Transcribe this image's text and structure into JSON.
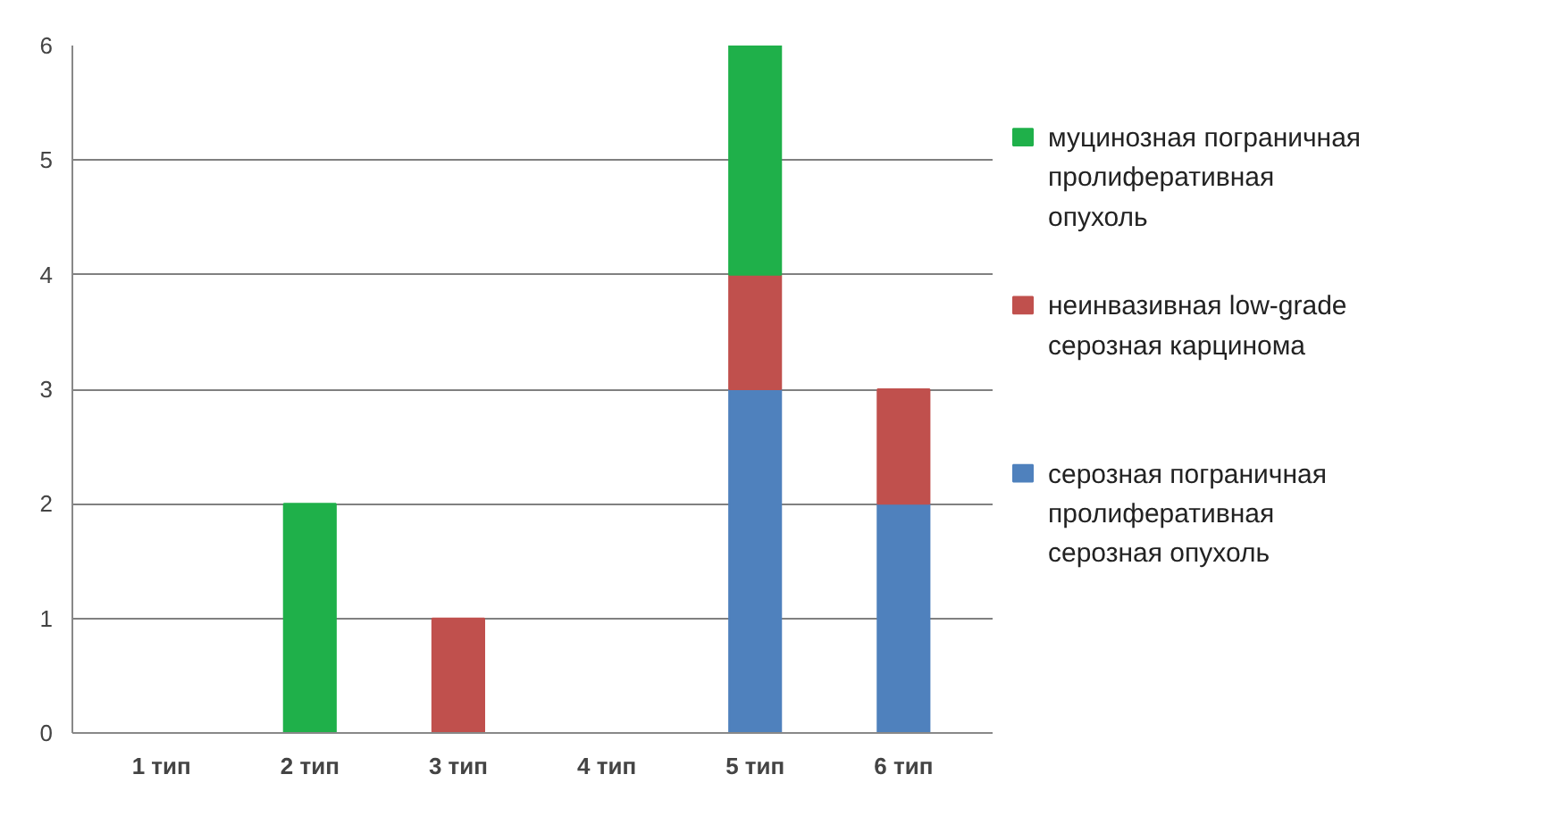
{
  "chart_data": {
    "type": "bar",
    "stacked": true,
    "categories": [
      "1 тип",
      "2 тип",
      "3 тип",
      "4 тип",
      "5 тип",
      "6 тип"
    ],
    "series": [
      {
        "name": "серозная пограничная пролиферативная серозная опухоль",
        "color": "#4f81bd",
        "values": [
          0,
          0,
          0,
          0,
          3,
          2
        ]
      },
      {
        "name": "неинвазивная low-grade серозная карцинома",
        "color": "#c0504d",
        "values": [
          0,
          0,
          1,
          0,
          1,
          1
        ]
      },
      {
        "name": "муцинозная пограничная пролиферативная опухоль",
        "color": "#1fb04a",
        "values": [
          0,
          2,
          0,
          0,
          2,
          0
        ]
      }
    ],
    "ylim": [
      0,
      6
    ],
    "yticks": [
      0,
      1,
      2,
      3,
      4,
      5,
      6
    ],
    "grid": "y",
    "legend": "right"
  }
}
